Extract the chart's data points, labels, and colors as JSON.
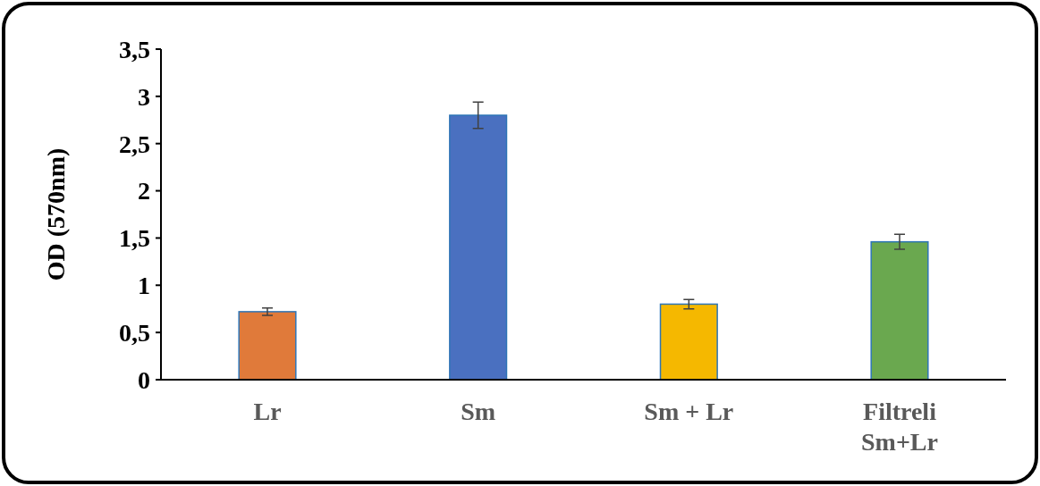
{
  "chart_data": {
    "type": "bar",
    "ylabel": "OD (570nm)",
    "categories": [
      "Lr",
      "Sm",
      "Sm + Lr",
      "Filtreli Sm+Lr"
    ],
    "values": [
      0.72,
      2.8,
      0.8,
      1.46
    ],
    "errors": [
      0.04,
      0.14,
      0.05,
      0.08
    ],
    "colors": [
      "#e07a3a",
      "#4a70c0",
      "#f5b800",
      "#6aa84f"
    ],
    "ylim": [
      0,
      3.5
    ],
    "yticks": [
      0,
      {
        "value": 0.5,
        "label": "0,5"
      },
      1,
      {
        "value": 1.5,
        "label": "1,5"
      },
      2,
      {
        "value": 2.5,
        "label": "2,5"
      },
      3,
      {
        "value": 3.5,
        "label": "3,5"
      }
    ],
    "grid": false
  }
}
